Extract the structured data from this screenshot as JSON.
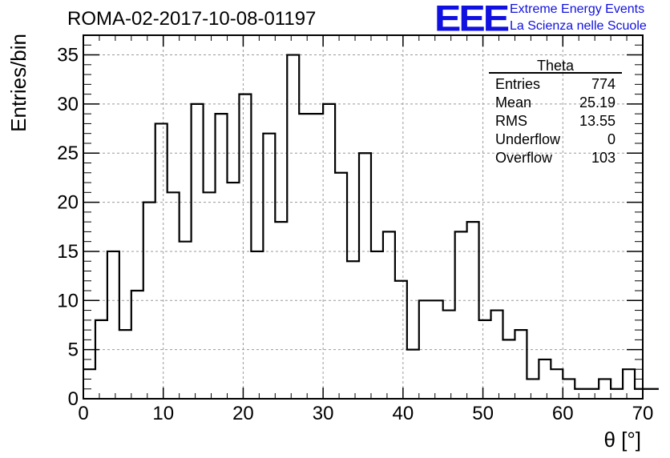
{
  "header": {
    "run_title": "ROMA-02-2017-10-08-01197",
    "logo_text": "EEE",
    "logo_line1": "Extreme Energy Events",
    "logo_line2": "La Scienza nelle Scuole",
    "logo_color": "#1010e0"
  },
  "stats": {
    "name": "Theta",
    "rows": [
      {
        "label": "Entries",
        "value": "774"
      },
      {
        "label": "Mean",
        "value": "25.19"
      },
      {
        "label": "RMS",
        "value": "13.55"
      },
      {
        "label": "Underflow",
        "value": "0"
      },
      {
        "label": "Overflow",
        "value": "103"
      }
    ]
  },
  "chart_data": {
    "type": "histogram",
    "title": "ROMA-02-2017-10-08-01197",
    "xlabel": "θ [°]",
    "ylabel": "Entries/bin",
    "xlim": [
      0,
      70
    ],
    "ylim": [
      0,
      37
    ],
    "bin_width": 1.5,
    "bin_start": 0,
    "values": [
      3,
      8,
      15,
      7,
      11,
      20,
      28,
      21,
      16,
      30,
      21,
      29,
      22,
      31,
      15,
      27,
      18,
      35,
      29,
      29,
      30,
      23,
      14,
      25,
      15,
      17,
      12,
      5,
      10,
      10,
      9,
      17,
      18,
      8,
      9,
      6,
      7,
      2,
      4,
      3,
      2,
      1,
      1,
      2,
      1,
      3,
      1,
      1
    ],
    "xticks": [
      0,
      10,
      20,
      30,
      40,
      50,
      60,
      70
    ],
    "yticks": [
      0,
      5,
      10,
      15,
      20,
      25,
      30,
      35
    ],
    "grid": true,
    "line_color": "#000000"
  }
}
